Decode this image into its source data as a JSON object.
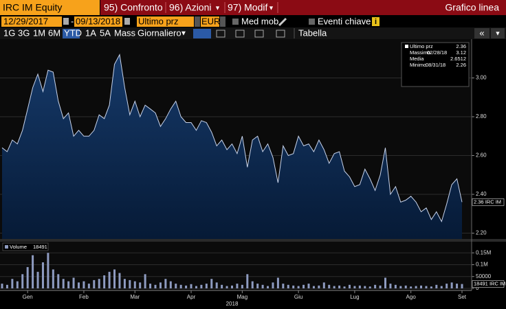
{
  "toolbar": {
    "security": "IRC IM Equity",
    "menu": [
      "95) Confronto",
      "96) Azioni",
      "97) Modif"
    ],
    "view": "Grafico linea"
  },
  "controls": {
    "start": "12/29/2017",
    "separator": "-",
    "end": "09/13/2018",
    "field": "Ultimo prz",
    "currency": "EUR",
    "moving_average": "Med mob",
    "events": "Eventi chiave"
  },
  "periods": [
    "1G",
    "3G",
    "1M",
    "6M",
    "YTD",
    "1A",
    "5A",
    "Mass"
  ],
  "selected_period": "YTD",
  "frequency": "Giornaliero",
  "table": "Tabella",
  "chart_data": [
    {
      "type": "area",
      "color": "#c8d4ec",
      "security_label": "IRC IM",
      "values": [
        2.64,
        2.62,
        2.68,
        2.66,
        2.73,
        2.84,
        2.95,
        3.02,
        2.93,
        3.04,
        3.03,
        2.88,
        2.79,
        2.82,
        2.7,
        2.73,
        2.7,
        2.7,
        2.73,
        2.81,
        2.79,
        2.86,
        3.07,
        3.12,
        2.95,
        2.81,
        2.88,
        2.8,
        2.86,
        2.84,
        2.82,
        2.75,
        2.79,
        2.84,
        2.88,
        2.8,
        2.77,
        2.77,
        2.73,
        2.78,
        2.77,
        2.72,
        2.65,
        2.68,
        2.63,
        2.66,
        2.61,
        2.7,
        2.54,
        2.68,
        2.7,
        2.62,
        2.66,
        2.59,
        2.46,
        2.65,
        2.6,
        2.61,
        2.7,
        2.65,
        2.66,
        2.62,
        2.68,
        2.63,
        2.56,
        2.61,
        2.62,
        2.52,
        2.49,
        2.44,
        2.45,
        2.53,
        2.48,
        2.42,
        2.5,
        2.64,
        2.4,
        2.44,
        2.36,
        2.37,
        2.39,
        2.36,
        2.31,
        2.33,
        2.27,
        2.31,
        2.26,
        2.35,
        2.45,
        2.48,
        2.36
      ],
      "xlim": [
        0,
        90
      ],
      "xticks": [
        {
          "value": 5,
          "label": "Gen"
        },
        {
          "value": 16,
          "label": "Feb"
        },
        {
          "value": 26,
          "label": "Mar"
        },
        {
          "value": 37,
          "label": "Apr"
        },
        {
          "value": 47,
          "label": "Mag"
        },
        {
          "value": 58,
          "label": "Giu"
        },
        {
          "value": 69,
          "label": "Lug"
        },
        {
          "value": 80,
          "label": "Ago"
        },
        {
          "value": 90,
          "label": "Set"
        }
      ],
      "x_year": "2018",
      "ylim": [
        2.17,
        3.2
      ],
      "yticks": [
        {
          "value": 2.2,
          "label": "2.20"
        },
        {
          "value": 2.4,
          "label": "2.40"
        },
        {
          "value": 2.6,
          "label": "2.60"
        },
        {
          "value": 2.8,
          "label": "2.80"
        },
        {
          "value": 3.0,
          "label": "3.00"
        }
      ],
      "legend": {
        "last": "Ultimo prz",
        "max": "Massimo",
        "max_date": "02/28/18",
        "mean": "Media",
        "mean_value": 2.6512,
        "min": "Minimo",
        "min_date": "08/31/18"
      }
    },
    {
      "type": "bar",
      "name": "Volume",
      "color": "#8e9bc0",
      "security_label": "IRC IM",
      "values": [
        20000,
        15000,
        40000,
        30000,
        60000,
        90000,
        140000,
        70000,
        110000,
        150000,
        80000,
        60000,
        40000,
        30000,
        45000,
        25000,
        30000,
        20000,
        35000,
        40000,
        55000,
        70000,
        80000,
        65000,
        40000,
        35000,
        30000,
        25000,
        60000,
        20000,
        15000,
        25000,
        40000,
        30000,
        20000,
        15000,
        12000,
        18000,
        10000,
        15000,
        20000,
        40000,
        25000,
        15000,
        10000,
        12000,
        20000,
        15000,
        60000,
        30000,
        20000,
        15000,
        10000,
        25000,
        45000,
        20000,
        15000,
        12000,
        10000,
        15000,
        20000,
        10000,
        12000,
        25000,
        15000,
        10000,
        12000,
        8000,
        15000,
        10000,
        12000,
        10000,
        8000,
        15000,
        12000,
        45000,
        20000,
        15000,
        10000,
        12000,
        8000,
        10000,
        12000,
        10000,
        8000,
        15000,
        10000,
        20000,
        25000,
        20000,
        18491
      ],
      "ylim": [
        0,
        197000
      ],
      "yticks": [
        0,
        {
          "value": 50000,
          "label": "50000"
        },
        {
          "value": 100000,
          "label": "0.1M"
        },
        {
          "value": 150000,
          "label": "0.15M"
        }
      ]
    }
  ]
}
